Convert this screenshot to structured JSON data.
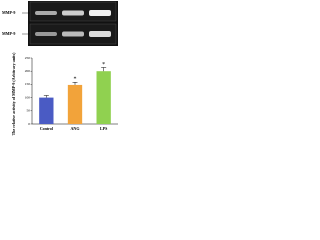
{
  "blot": {
    "labels": [
      "MMP-9",
      "MMP-9"
    ]
  },
  "chart_data": {
    "type": "bar",
    "y_label": "The relative activity of MMP-9 (Arbitrary units)",
    "categories": [
      "Control",
      "ANG",
      "LPS"
    ],
    "values": [
      100,
      148,
      200
    ],
    "errors": [
      8,
      10,
      14
    ],
    "colors": [
      "#4a5bc4",
      "#f2a33a",
      "#90d150"
    ],
    "annotations": [
      {
        "category": "ANG",
        "text": "*"
      },
      {
        "category": "LPS",
        "text": "*"
      }
    ],
    "ylim": [
      0,
      250
    ],
    "yticks": [
      0,
      50,
      100,
      150,
      200,
      250
    ]
  }
}
